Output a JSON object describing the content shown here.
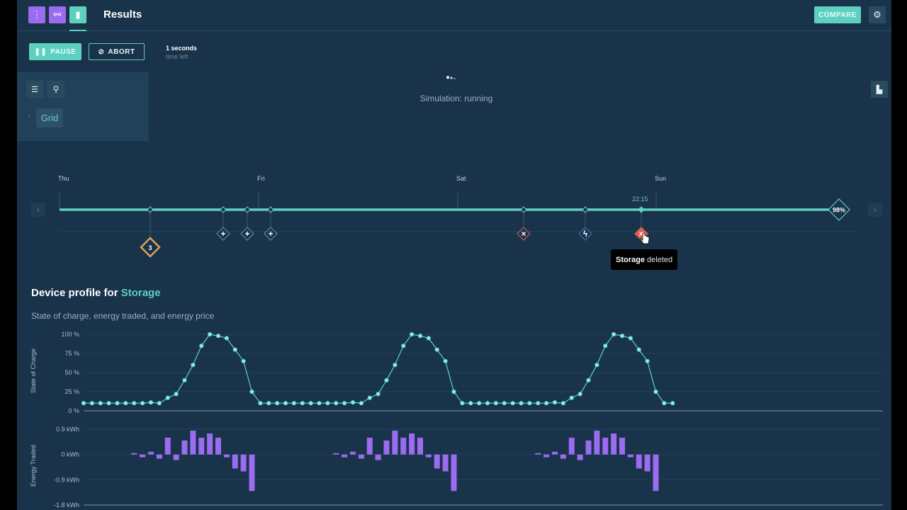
{
  "header": {
    "title": "Results",
    "compare_label": "COMPARE",
    "nav_icons": [
      "more-vertical-icon",
      "link-icon",
      "bar-chart-icon"
    ],
    "settings_icon": "gear-icon"
  },
  "controls": {
    "pause_label": "PAUSE",
    "abort_label": "ABORT",
    "time_value": "1 seconds",
    "time_caption": "time left"
  },
  "status": {
    "text": "Simulation: running"
  },
  "sidebar": {
    "tree_items": [
      {
        "label": "Grid"
      }
    ]
  },
  "timeline": {
    "days": [
      "Thu",
      "Fri",
      "Sat",
      "Sun"
    ],
    "current_time": "22:15",
    "progress_label": "98%",
    "progress": 0.98,
    "events": [
      {
        "type": "group",
        "count": "3",
        "color": "#e0a255"
      },
      {
        "type": "add",
        "icon": "plus-icon"
      },
      {
        "type": "add",
        "icon": "plus-icon"
      },
      {
        "type": "add",
        "icon": "plus-icon"
      },
      {
        "type": "remove",
        "icon": "x-icon",
        "color": "#c9594d"
      },
      {
        "type": "event",
        "icon": "pulse-icon",
        "color": "#3b6db5"
      },
      {
        "type": "delete-active",
        "icon": "x-icon",
        "color": "#e0604e"
      }
    ],
    "tooltip": {
      "bold": "Storage",
      "rest": "deleted"
    }
  },
  "profile": {
    "title_prefix": "Device profile for",
    "device": "Storage",
    "subtitle": "State of charge, energy traded, and energy price"
  },
  "colors": {
    "accent": "#5ed0c0",
    "purple": "#9b6bf0",
    "bg": "#18334a"
  },
  "chart_data": [
    {
      "type": "line",
      "ylabel": "State of Charge",
      "yticks": [
        "100 %",
        "75 %",
        "50 %",
        "25 %",
        "0 %"
      ],
      "ylim": [
        0,
        100
      ],
      "x_unit": "hour",
      "x": [
        0,
        1,
        2,
        3,
        4,
        5,
        6,
        7,
        8,
        9,
        10,
        11,
        12,
        13,
        14,
        15,
        16,
        17,
        18,
        19,
        20,
        21,
        22,
        23,
        24,
        25,
        26,
        27,
        28,
        29,
        30,
        31,
        32,
        33,
        34,
        35,
        36,
        37,
        38,
        39,
        40,
        41,
        42,
        43,
        44,
        45,
        46,
        47,
        48,
        49,
        50,
        51,
        52,
        53,
        54,
        55,
        56,
        57,
        58,
        59,
        60,
        61,
        62,
        63,
        64,
        65,
        66,
        67,
        68,
        69,
        70
      ],
      "values": [
        10,
        10,
        10,
        10,
        10,
        10,
        10,
        10,
        11,
        10,
        17,
        22,
        40,
        60,
        85,
        100,
        98,
        95,
        80,
        65,
        25,
        10,
        10,
        10,
        10,
        10,
        10,
        10,
        10,
        10,
        10,
        10,
        11,
        10,
        17,
        22,
        40,
        60,
        85,
        100,
        98,
        95,
        80,
        65,
        25,
        10,
        10,
        10,
        10,
        10,
        10,
        10,
        10,
        10,
        10,
        10,
        11,
        10,
        17,
        22,
        40,
        60,
        85,
        100,
        98,
        95,
        80,
        65,
        25,
        10,
        10
      ]
    },
    {
      "type": "bar",
      "ylabel": "Energy Traded",
      "yticks": [
        "0.9 kWh",
        "0 kWh",
        "-0.9 kWh",
        "-1.8 kWh"
      ],
      "ylim": [
        -1.8,
        0.9
      ],
      "x_unit": "hour",
      "x": [
        6,
        7,
        8,
        9,
        10,
        11,
        12,
        13,
        14,
        15,
        16,
        17,
        18,
        19,
        20,
        30,
        31,
        32,
        33,
        34,
        35,
        36,
        37,
        38,
        39,
        40,
        41,
        42,
        43,
        44,
        54,
        55,
        56,
        57,
        58,
        59,
        60,
        61,
        62,
        63,
        64,
        65,
        66,
        67,
        68
      ],
      "values": [
        0.05,
        -0.1,
        0.1,
        -0.15,
        0.6,
        -0.2,
        0.5,
        0.85,
        0.6,
        0.75,
        0.6,
        -0.1,
        -0.5,
        -0.6,
        -1.3,
        0.05,
        -0.1,
        0.1,
        -0.15,
        0.6,
        -0.2,
        0.5,
        0.85,
        0.6,
        0.75,
        0.6,
        -0.1,
        -0.5,
        -0.6,
        -1.3,
        0.05,
        -0.1,
        0.1,
        -0.15,
        0.6,
        -0.2,
        0.5,
        0.85,
        0.6,
        0.75,
        0.6,
        -0.1,
        -0.5,
        -0.6,
        -1.3
      ]
    }
  ]
}
